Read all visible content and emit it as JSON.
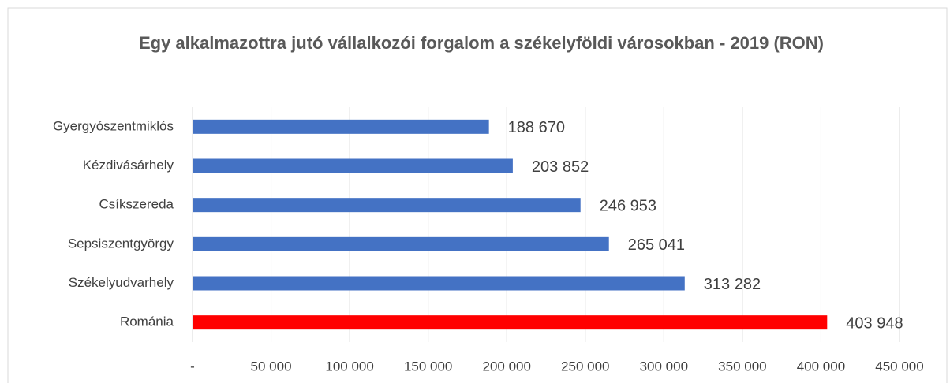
{
  "chart_data": {
    "type": "bar",
    "orientation": "horizontal",
    "title": "Egy alkalmazottra jutó vállalkozói forgalom a székelyföldi városokban - 2019 (RON)",
    "categories": [
      "Gyergyószentmiklós",
      "Kézdivásárhely",
      "Csíkszereda",
      "Sepsiszentgyörgy",
      "Székelyudvarhely",
      "Románia"
    ],
    "values": [
      188670,
      203852,
      246953,
      265041,
      313282,
      403948
    ],
    "value_labels": [
      "188 670",
      "203 852",
      "246 953",
      "265 041",
      "313 282",
      "403 948"
    ],
    "colors": [
      "#4472c4",
      "#4472c4",
      "#4472c4",
      "#4472c4",
      "#4472c4",
      "#ff0000"
    ],
    "xlim": [
      0,
      450000
    ],
    "xticks": [
      {
        "value": 0,
        "label": "-"
      },
      {
        "value": 50000,
        "label": "50 000"
      },
      {
        "value": 100000,
        "label": "100 000"
      },
      {
        "value": 150000,
        "label": "150 000"
      },
      {
        "value": 200000,
        "label": "200 000"
      },
      {
        "value": 250000,
        "label": "250 000"
      },
      {
        "value": 300000,
        "label": "300 000"
      },
      {
        "value": 350000,
        "label": "350 000"
      },
      {
        "value": 400000,
        "label": "400 000"
      },
      {
        "value": 450000,
        "label": "450 000"
      }
    ],
    "grid": true
  }
}
